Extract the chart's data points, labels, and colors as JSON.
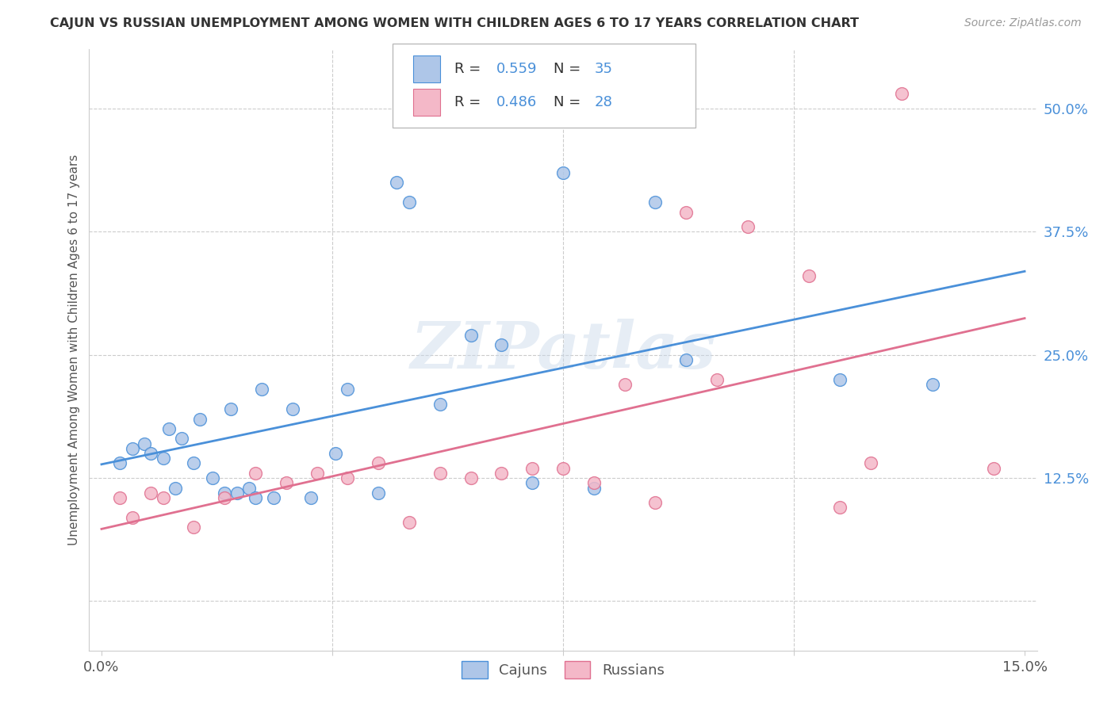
{
  "title": "CAJUN VS RUSSIAN UNEMPLOYMENT AMONG WOMEN WITH CHILDREN AGES 6 TO 17 YEARS CORRELATION CHART",
  "source": "Source: ZipAtlas.com",
  "ylabel": "Unemployment Among Women with Children Ages 6 to 17 years",
  "xlim": [
    0.0,
    15.0
  ],
  "ylim": [
    -5.0,
    56.0
  ],
  "cajuns_color": "#aec6e8",
  "russians_color": "#f4b8c8",
  "cajuns_line_color": "#4a90d9",
  "russians_line_color": "#e07090",
  "cajuns_R": 0.559,
  "cajuns_N": 35,
  "russians_R": 0.486,
  "russians_N": 28,
  "watermark": "ZIPatlas",
  "background_color": "#ffffff",
  "grid_color": "#cccccc",
  "cajuns_x": [
    0.3,
    0.5,
    0.7,
    0.8,
    1.0,
    1.1,
    1.2,
    1.3,
    1.5,
    1.6,
    1.8,
    2.0,
    2.1,
    2.2,
    2.4,
    2.5,
    2.6,
    2.8,
    3.1,
    3.4,
    3.8,
    4.0,
    4.5,
    4.8,
    5.0,
    5.5,
    6.0,
    6.5,
    7.0,
    7.5,
    8.0,
    9.0,
    9.5,
    12.0,
    13.5
  ],
  "cajuns_y": [
    14.0,
    15.5,
    16.0,
    15.0,
    14.5,
    17.5,
    11.5,
    16.5,
    14.0,
    18.5,
    12.5,
    11.0,
    19.5,
    11.0,
    11.5,
    10.5,
    21.5,
    10.5,
    19.5,
    10.5,
    15.0,
    21.5,
    11.0,
    42.5,
    40.5,
    20.0,
    27.0,
    26.0,
    12.0,
    43.5,
    11.5,
    40.5,
    24.5,
    22.5,
    22.0
  ],
  "russians_x": [
    0.3,
    0.5,
    0.8,
    1.0,
    1.5,
    2.0,
    2.5,
    3.0,
    3.5,
    4.0,
    4.5,
    5.0,
    5.5,
    6.0,
    6.5,
    7.0,
    7.5,
    8.0,
    8.5,
    9.0,
    9.5,
    10.0,
    10.5,
    11.5,
    12.0,
    12.5,
    13.0,
    14.5
  ],
  "russians_y": [
    10.5,
    8.5,
    11.0,
    10.5,
    7.5,
    10.5,
    13.0,
    12.0,
    13.0,
    12.5,
    14.0,
    8.0,
    13.0,
    12.5,
    13.0,
    13.5,
    13.5,
    12.0,
    22.0,
    10.0,
    39.5,
    22.5,
    38.0,
    33.0,
    9.5,
    14.0,
    51.5,
    13.5
  ]
}
